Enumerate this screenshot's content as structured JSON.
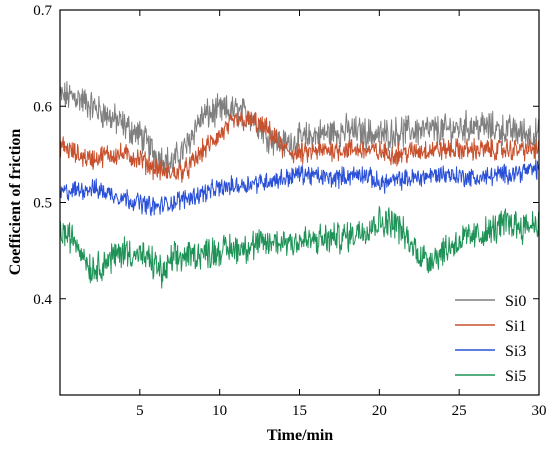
{
  "chart_data": {
    "type": "line",
    "title": "",
    "xlabel": "Time/min",
    "ylabel": "Coefficient of friction",
    "xlim": [
      0,
      30
    ],
    "ylim": [
      0.3,
      0.7
    ],
    "x_ticks": [
      5,
      10,
      15,
      20,
      25,
      30
    ],
    "x_tick_labels": [
      "5",
      "10",
      "15",
      "20",
      "25",
      "30"
    ],
    "y_ticks": [
      0.4,
      0.5,
      0.6,
      0.7
    ],
    "y_tick_labels": [
      "0.4",
      "0.5",
      "0.6",
      "0.7"
    ],
    "grid": false,
    "legend_position": "bottom-right",
    "series": [
      {
        "name": "Si0",
        "color": "#7f7f7f",
        "x": [
          0,
          1,
          2,
          3,
          4,
          5,
          6,
          7,
          7.5,
          8,
          8.5,
          9,
          10,
          11,
          12,
          13,
          14,
          15,
          16,
          18,
          20,
          22,
          24,
          26,
          28,
          30
        ],
        "values": [
          0.61,
          0.61,
          0.6,
          0.59,
          0.58,
          0.57,
          0.55,
          0.54,
          0.55,
          0.56,
          0.58,
          0.59,
          0.595,
          0.595,
          0.59,
          0.57,
          0.56,
          0.565,
          0.57,
          0.575,
          0.57,
          0.575,
          0.575,
          0.58,
          0.575,
          0.57
        ],
        "noise": 0.013
      },
      {
        "name": "Si1",
        "color": "#c8502c",
        "x": [
          0,
          1,
          2,
          3,
          4,
          5,
          6,
          7,
          8,
          9,
          10,
          11,
          12,
          13,
          14,
          15,
          17,
          19,
          21,
          23,
          25,
          27,
          30
        ],
        "values": [
          0.56,
          0.55,
          0.545,
          0.55,
          0.55,
          0.545,
          0.535,
          0.53,
          0.535,
          0.555,
          0.57,
          0.585,
          0.585,
          0.575,
          0.555,
          0.55,
          0.555,
          0.555,
          0.55,
          0.555,
          0.555,
          0.555,
          0.555
        ],
        "noise": 0.009
      },
      {
        "name": "Si3",
        "color": "#2a50d8",
        "x": [
          0,
          2,
          4,
          6,
          8,
          10,
          12,
          14,
          15,
          17,
          19,
          20,
          22,
          24,
          26,
          28,
          30
        ],
        "values": [
          0.51,
          0.515,
          0.505,
          0.495,
          0.505,
          0.515,
          0.52,
          0.525,
          0.53,
          0.525,
          0.53,
          0.52,
          0.525,
          0.53,
          0.525,
          0.53,
          0.535
        ],
        "noise": 0.008
      },
      {
        "name": "Si5",
        "color": "#1f9357",
        "x": [
          0,
          1,
          2,
          3,
          4,
          5,
          6,
          6.5,
          7,
          8,
          10,
          12,
          14,
          16,
          18,
          20,
          21,
          22,
          23,
          24,
          25,
          26,
          27,
          28,
          29,
          30
        ],
        "values": [
          0.47,
          0.46,
          0.43,
          0.44,
          0.45,
          0.445,
          0.435,
          0.425,
          0.44,
          0.445,
          0.45,
          0.455,
          0.46,
          0.46,
          0.465,
          0.48,
          0.48,
          0.455,
          0.44,
          0.45,
          0.46,
          0.465,
          0.47,
          0.48,
          0.475,
          0.48
        ],
        "noise": 0.013
      }
    ]
  }
}
